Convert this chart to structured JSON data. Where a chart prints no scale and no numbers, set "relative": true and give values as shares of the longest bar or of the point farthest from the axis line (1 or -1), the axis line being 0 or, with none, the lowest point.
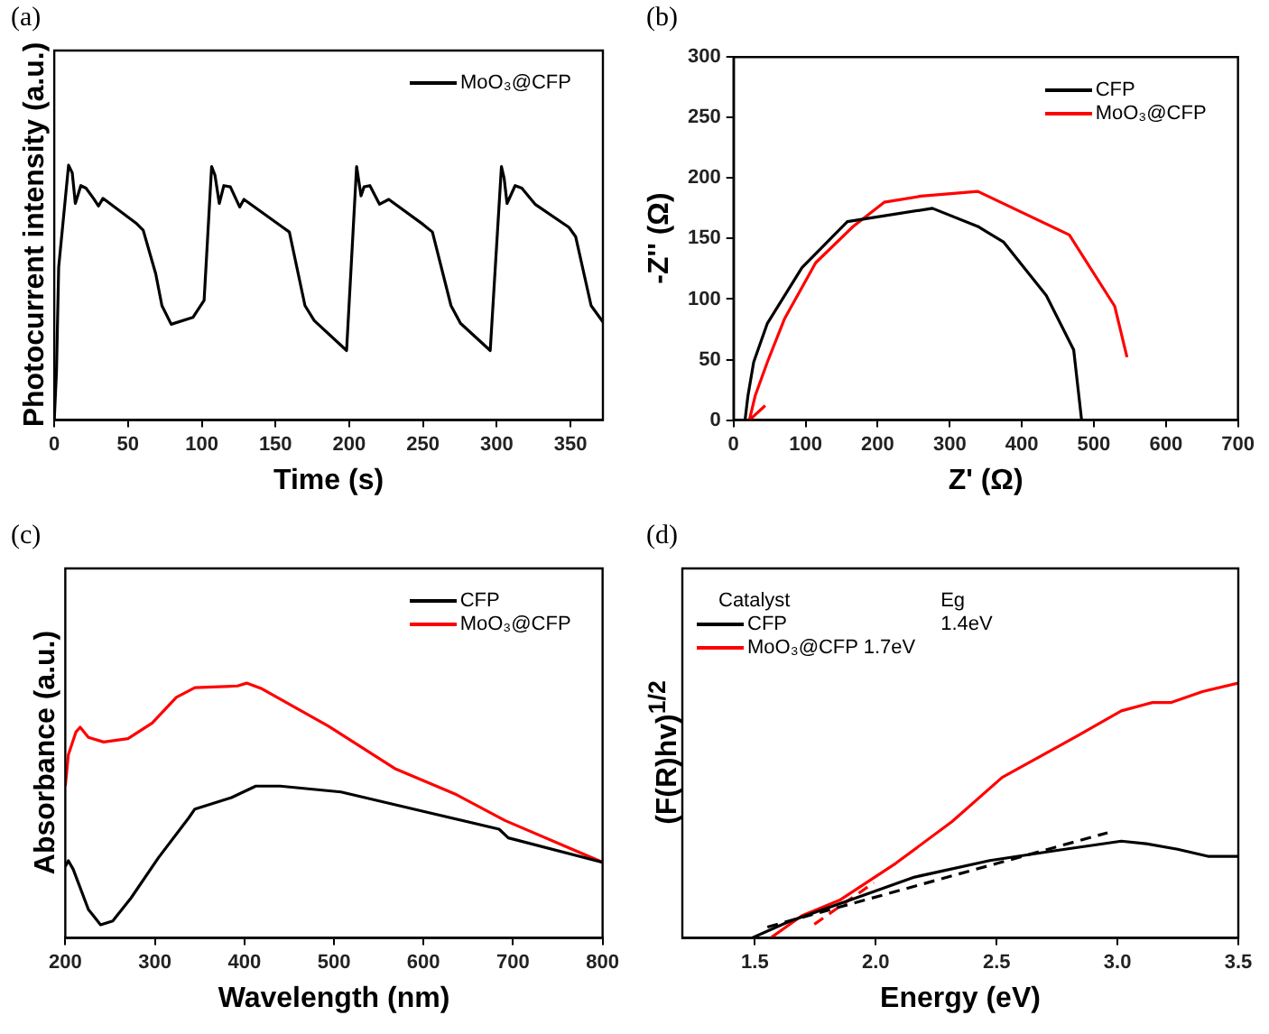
{
  "chart_data": [
    {
      "type": "line",
      "title": "(a)",
      "xlabel": "Time (s)",
      "ylabel": "Photocurrent intensity (a.u.)",
      "relative": true,
      "legend": "top right",
      "xlim": [
        0,
        372
      ],
      "xticks": [
        0,
        50,
        100,
        150,
        200,
        250,
        300,
        350
      ],
      "series": [
        {
          "name": "MoO₃@CFP",
          "color": "#000000",
          "x": [
            0,
            1.5,
            3,
            9.7,
            12.2,
            14.3,
            18,
            21.5,
            26.6,
            30,
            33,
            56,
            60.3,
            68.8,
            73,
            79.3,
            94,
            101.6,
            106.7,
            109,
            111.9,
            115,
            119.4,
            125.7,
            128.6,
            155,
            159.4,
            170,
            176.3,
            198.2,
            205,
            208,
            210,
            214,
            220.5,
            226.8,
            250,
            256.4,
            269,
            275.4,
            295.6,
            303.2,
            305,
            307,
            312.5,
            317,
            326,
            349,
            353.5,
            364,
            372
          ],
          "values": [
            0,
            0.19,
            0.6,
            1,
            0.97,
            0.85,
            0.92,
            0.91,
            0.87,
            0.84,
            0.87,
            0.77,
            0.745,
            0.574,
            0.449,
            0.376,
            0.403,
            0.47,
            0.995,
            0.96,
            0.85,
            0.92,
            0.915,
            0.836,
            0.866,
            0.756,
            0.738,
            0.449,
            0.39,
            0.273,
            0.995,
            0.88,
            0.915,
            0.92,
            0.847,
            0.866,
            0.768,
            0.738,
            0.449,
            0.38,
            0.273,
            0.995,
            0.95,
            0.85,
            0.92,
            0.91,
            0.847,
            0.756,
            0.72,
            0.449,
            0.385
          ]
        }
      ]
    },
    {
      "type": "line",
      "title": "(b)",
      "xlabel": "Z' (Ω)",
      "ylabel": "-Z'' (Ω)",
      "legend": "top right",
      "xlim": [
        0,
        700
      ],
      "xticks": [
        0,
        100,
        200,
        300,
        400,
        500,
        600,
        700
      ],
      "ylim": [
        0,
        300
      ],
      "yticks": [
        0,
        50,
        100,
        150,
        200,
        250,
        300
      ],
      "series": [
        {
          "name": "CFP",
          "color": "#000000",
          "x": [
            16,
            20,
            28,
            47,
            95,
            158,
            276,
            339,
            375,
            434,
            472,
            483
          ],
          "values": [
            0,
            20,
            48,
            80,
            126,
            164,
            175,
            160,
            147,
            103,
            58,
            0
          ]
        },
        {
          "name": "MoO₃@CFP",
          "color": "#ff0000",
          "x": [
            44,
            22,
            30,
            47,
            71,
            114,
            166,
            209,
            260,
            339,
            466,
            529,
            546
          ],
          "values": [
            12,
            0,
            20,
            48,
            84,
            130,
            160,
            180,
            185,
            189,
            153,
            94,
            52
          ]
        }
      ]
    },
    {
      "type": "line",
      "title": "(c)",
      "xlabel": "Wavelength (nm)",
      "ylabel": "Absorbance (a.u.)",
      "relative": true,
      "legend": "top right",
      "xlim": [
        200,
        800
      ],
      "xticks": [
        200,
        300,
        400,
        500,
        600,
        700,
        800
      ],
      "series": [
        {
          "name": "CFP",
          "color": "#000000",
          "x": [
            200,
            203.4,
            208.8,
            225.8,
            239.4,
            253,
            273.4,
            304,
            338,
            344.7,
            385.5,
            412.7,
            439.9,
            507.8,
            603,
            684.5,
            694.7,
            800
          ],
          "values": [
            0.281,
            0.303,
            0.27,
            0.112,
            0.052,
            0.067,
            0.157,
            0.315,
            0.472,
            0.506,
            0.551,
            0.596,
            0.596,
            0.573,
            0.494,
            0.427,
            0.393,
            0.297
          ]
        },
        {
          "name": "MoO₃@CFP",
          "color": "#ff0000",
          "x": [
            200,
            203.4,
            212,
            216.6,
            225.8,
            242.8,
            270,
            297,
            324,
            344.7,
            392.3,
            402.5,
            419.4,
            494,
            569,
            637,
            691,
            800
          ],
          "values": [
            0.596,
            0.719,
            0.809,
            0.827,
            0.787,
            0.769,
            0.782,
            0.843,
            0.944,
            0.982,
            0.989,
            1,
            0.978,
            0.831,
            0.663,
            0.562,
            0.461,
            0.297
          ]
        }
      ]
    },
    {
      "type": "line",
      "title": "(d)",
      "xlabel": "Energy (eV)",
      "ylabel": "(F(R)hv)$^{1/2}$",
      "relative": true,
      "legend": "top left",
      "legend_title": "Catalyst",
      "annotations": [
        "Eg",
        "1.4eV"
      ],
      "xlim": [
        1.2,
        3.5
      ],
      "xticks": [
        1.5,
        {
          "value": 2,
          "label": "2.0"
        },
        2.5,
        {
          "value": 3,
          "label": "3.0"
        },
        3.5
      ],
      "series": [
        {
          "name": "CFP",
          "color": "#000000",
          "x": [
            1.487,
            1.642,
            1.902,
            2.161,
            2.472,
            2.731,
            3.016,
            3.119,
            3.249,
            3.378,
            3.5
          ],
          "values": [
            0,
            0.065,
            0.152,
            0.239,
            0.304,
            0.341,
            0.38,
            0.37,
            0.348,
            0.32,
            0.32
          ]
        },
        {
          "name": "MoO₃@CFP 1.7eV",
          "color": "#ff0000",
          "x": [
            1.565,
            1.694,
            1.85,
            2.083,
            2.316,
            2.523,
            2.834,
            3.016,
            3.145,
            3.223,
            3.352,
            3.5
          ],
          "values": [
            0,
            0.087,
            0.148,
            0.293,
            0.457,
            0.63,
            0.793,
            0.891,
            0.924,
            0.924,
            0.967,
            1
          ]
        },
        {
          "color": "#000000",
          "line_style": "dashed",
          "x": [
            1.552,
            2.959
          ],
          "values": [
            0.043,
            0.413
          ]
        },
        {
          "color": "#ff0000",
          "line_style": "dashed",
          "x": [
            1.746,
            1.992
          ],
          "values": [
            0.054,
            0.217
          ]
        }
      ]
    }
  ]
}
